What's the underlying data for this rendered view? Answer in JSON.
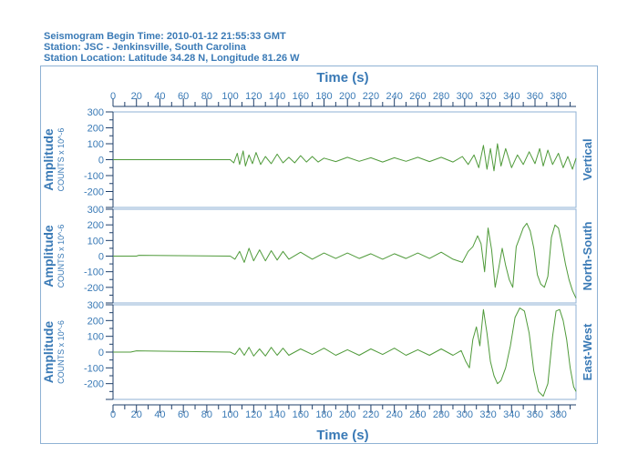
{
  "header": {
    "line1": "Seismogram Begin Time: 2010-01-12 21:55:33 GMT",
    "line2": "Station: JSC - Jenkinsville, South Carolina",
    "line3": "Station Location: Latitude 34.28 N, Longitude 81.26 W"
  },
  "colors": {
    "text": "#3a7ab6",
    "trace": "#4f9a3a",
    "axis": "#1f3f6a",
    "frame": "#8fb2d4"
  },
  "chart_data": {
    "type": "line",
    "xlabel": "Time (s)",
    "xlim": [
      0,
      395
    ],
    "x_ticks": [
      0,
      20,
      40,
      60,
      80,
      100,
      120,
      140,
      160,
      180,
      200,
      220,
      240,
      260,
      280,
      300,
      320,
      340,
      360,
      380
    ],
    "grid": false,
    "panels": [
      {
        "name": "Vertical",
        "ylabel": "Amplitude",
        "yunits": "COUNTS x 10^-6",
        "ylim": [
          -300,
          300
        ],
        "y_ticks": [
          -200,
          -100,
          0,
          100,
          200,
          300
        ],
        "series": [
          {
            "x": [
              0,
              100,
              103,
              106,
              108,
              111,
              113,
              116,
              119,
              122,
              126,
              130,
              135,
              140,
              145,
              150,
              155,
              160,
              165,
              170,
              175,
              180,
              190,
              200,
              210,
              220,
              230,
              240,
              250,
              260,
              270,
              280,
              290,
              298,
              303,
              308,
              312,
              316,
              319,
              322,
              325,
              328,
              331,
              335,
              340,
              345,
              350,
              355,
              360,
              364,
              367,
              371,
              375,
              380,
              384,
              388,
              392,
              395
            ],
            "y": [
              0,
              0,
              -20,
              40,
              -30,
              55,
              -40,
              30,
              -25,
              45,
              -30,
              20,
              -25,
              35,
              -20,
              15,
              -20,
              25,
              -15,
              20,
              -15,
              10,
              -12,
              15,
              -10,
              12,
              -15,
              12,
              -10,
              15,
              -12,
              15,
              -15,
              20,
              -30,
              30,
              -50,
              90,
              -60,
              70,
              -70,
              100,
              -40,
              70,
              -50,
              30,
              -30,
              50,
              -25,
              70,
              -40,
              60,
              -30,
              40,
              -50,
              20,
              -60,
              10
            ]
          }
        ]
      },
      {
        "name": "North-South",
        "ylabel": "Amplitude",
        "yunits": "COUNTS x 10^-6",
        "ylim": [
          -300,
          300
        ],
        "y_ticks": [
          -200,
          -100,
          0,
          100,
          200,
          300
        ],
        "series": [
          {
            "x": [
              0,
              20,
              22,
              100,
              104,
              108,
              112,
              116,
              120,
              125,
              130,
              135,
              140,
              145,
              150,
              160,
              170,
              180,
              190,
              200,
              210,
              220,
              230,
              240,
              250,
              260,
              270,
              280,
              290,
              298,
              303,
              307,
              311,
              314,
              317,
              320,
              323,
              326,
              329,
              332,
              335,
              338,
              341,
              344,
              347,
              350,
              353,
              356,
              359,
              362,
              365,
              368,
              371,
              374,
              377,
              380,
              383,
              386,
              389,
              392,
              395
            ],
            "y": [
              0,
              0,
              5,
              0,
              -20,
              30,
              -40,
              50,
              -30,
              40,
              -30,
              35,
              -25,
              30,
              -20,
              25,
              -20,
              20,
              -15,
              20,
              -15,
              15,
              -20,
              15,
              -15,
              20,
              -15,
              25,
              -20,
              -40,
              30,
              60,
              130,
              80,
              -100,
              180,
              40,
              -200,
              -80,
              50,
              -60,
              -150,
              -200,
              60,
              120,
              180,
              210,
              160,
              50,
              -120,
              -180,
              -200,
              -130,
              120,
              200,
              180,
              70,
              -50,
              -150,
              -220,
              -270
            ]
          }
        ]
      },
      {
        "name": "East-West",
        "ylabel": "Amplitude",
        "yunits": "COUNTS x 10^-6",
        "ylim": [
          -300,
          300
        ],
        "y_ticks": [
          -200,
          -100,
          0,
          100,
          200,
          300
        ],
        "series": [
          {
            "x": [
              0,
              15,
              20,
              100,
              104,
              108,
              112,
              116,
              120,
              125,
              130,
              135,
              140,
              145,
              150,
              160,
              170,
              180,
              190,
              200,
              210,
              220,
              230,
              240,
              250,
              260,
              270,
              280,
              290,
              297,
              301,
              304,
              307,
              310,
              313,
              316,
              319,
              322,
              325,
              328,
              331,
              335,
              339,
              343,
              347,
              351,
              355,
              359,
              363,
              367,
              371,
              375,
              378,
              381,
              384,
              387,
              390,
              393,
              395
            ],
            "y": [
              0,
              0,
              8,
              0,
              -15,
              25,
              -20,
              30,
              -25,
              20,
              -25,
              30,
              -20,
              25,
              -20,
              20,
              -15,
              25,
              -20,
              15,
              -20,
              20,
              -15,
              25,
              -20,
              15,
              -20,
              20,
              -20,
              10,
              -60,
              -100,
              80,
              160,
              40,
              270,
              120,
              -60,
              -150,
              -200,
              -180,
              -100,
              40,
              220,
              280,
              260,
              120,
              -120,
              -250,
              -280,
              -200,
              100,
              260,
              270,
              200,
              80,
              -100,
              -220,
              -250
            ]
          }
        ]
      }
    ]
  }
}
